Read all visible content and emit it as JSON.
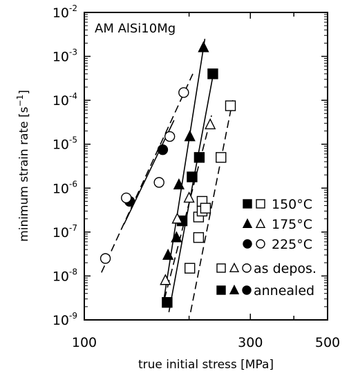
{
  "chart_data": {
    "type": "scatter",
    "title": "AM AlSi10Mg",
    "xlabel": "true initial stress [MPa]",
    "ylabel_main": "minimum strain rate [s",
    "ylabel_sup": "−1",
    "ylabel_end": "]",
    "x_scale": "log",
    "y_scale": "log",
    "xlim": [
      100,
      500
    ],
    "ylim": [
      1e-09,
      0.01
    ],
    "x_ticks": [
      {
        "value": 100,
        "label": "100"
      },
      {
        "value": 300,
        "label": "300"
      },
      {
        "value": 500,
        "label": "500"
      }
    ],
    "y_ticks": [
      {
        "exp": -9,
        "base": "10",
        "sup": "-9"
      },
      {
        "exp": -8,
        "base": "10",
        "sup": "-8"
      },
      {
        "exp": -7,
        "base": "10",
        "sup": "-7"
      },
      {
        "exp": -6,
        "base": "10",
        "sup": "-6"
      },
      {
        "exp": -5,
        "base": "10",
        "sup": "-5"
      },
      {
        "exp": -4,
        "base": "10",
        "sup": "-4"
      },
      {
        "exp": -3,
        "base": "10",
        "sup": "-3"
      },
      {
        "exp": -2,
        "base": "10",
        "sup": "-2"
      }
    ],
    "legend": {
      "placement": "bottom-right",
      "temperatures": [
        {
          "marker": "square",
          "label": "150°C"
        },
        {
          "marker": "triangle",
          "label": "175°C"
        },
        {
          "marker": "circle",
          "label": "225°C"
        }
      ],
      "states": [
        {
          "fill": "open",
          "label": "as depos."
        },
        {
          "fill": "filled",
          "label": "annealed"
        }
      ]
    },
    "series": [
      {
        "temperature": "150°C",
        "state": "annealed",
        "marker": "square",
        "fill": "filled",
        "points": [
          [
            173,
            2.5e-09
          ],
          [
            191,
            1.8e-07
          ],
          [
            204,
            1.8e-06
          ],
          [
            214,
            5e-06
          ],
          [
            234,
            0.0004
          ]
        ]
      },
      {
        "temperature": "150°C",
        "state": "as depos.",
        "marker": "square",
        "fill": "open",
        "points": [
          [
            201,
            1.5e-08
          ],
          [
            213,
            7.5e-08
          ],
          [
            213,
            2.2e-07
          ],
          [
            218,
            3e-07
          ],
          [
            218,
            5e-07
          ],
          [
            223,
            3.5e-07
          ],
          [
            247,
            5e-06
          ],
          [
            263,
            7.5e-05
          ]
        ]
      },
      {
        "temperature": "175°C",
        "state": "annealed",
        "marker": "triangle",
        "fill": "filled",
        "points": [
          [
            174,
            3e-08
          ],
          [
            184,
            7.5e-08
          ],
          [
            187,
            1.2e-06
          ],
          [
            201,
            1.5e-05
          ],
          [
            220,
            0.0016
          ]
        ]
      },
      {
        "temperature": "175°C",
        "state": "as depos.",
        "marker": "triangle",
        "fill": "open",
        "points": [
          [
            171,
            8e-09
          ],
          [
            185,
            2e-07
          ],
          [
            200,
            6e-07
          ],
          [
            230,
            2.8e-05
          ]
        ]
      },
      {
        "temperature": "225°C",
        "state": "annealed",
        "marker": "circle",
        "fill": "filled",
        "points": [
          [
            135,
            5e-07
          ],
          [
            168,
            7.5e-06
          ]
        ]
      },
      {
        "temperature": "225°C",
        "state": "as depos.",
        "marker": "circle",
        "fill": "open",
        "points": [
          [
            115,
            2.5e-08
          ],
          [
            132,
            6e-07
          ],
          [
            164,
            1.35e-06
          ],
          [
            176,
            1.5e-05
          ],
          [
            193,
            0.00015
          ]
        ]
      }
    ],
    "fit_lines": [
      {
        "temperature": "150°C",
        "state": "annealed",
        "style": "solid",
        "from": [
          175,
          1.5e-09
        ],
        "to": [
          236,
          0.0005
        ]
      },
      {
        "temperature": "150°C",
        "state": "as depos.",
        "style": "dashed",
        "from": [
          202,
          1.5e-09
        ],
        "to": [
          267,
          0.0001
        ]
      },
      {
        "temperature": "175°C",
        "state": "annealed",
        "style": "solid",
        "from": [
          168,
          2e-09
        ],
        "to": [
          222,
          0.0025
        ]
      },
      {
        "temperature": "175°C",
        "state": "as depos.",
        "style": "dashed",
        "from": [
          170,
          3e-09
        ],
        "to": [
          232,
          4.5e-05
        ]
      },
      {
        "temperature": "225°C",
        "state": "annealed",
        "style": "solid",
        "from": [
          130,
          1.5e-07
        ],
        "to": [
          181,
          3.5e-05
        ]
      },
      {
        "temperature": "225°C",
        "state": "as depos.",
        "style": "dashed",
        "from": [
          112,
          1.2e-08
        ],
        "to": [
          205,
          0.0004
        ]
      }
    ]
  }
}
